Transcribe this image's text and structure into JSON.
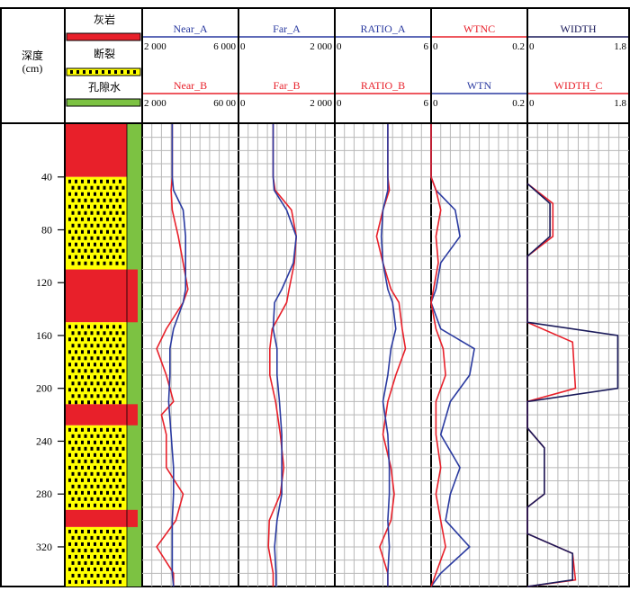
{
  "depth_track": {
    "title": "深度",
    "unit": "(cm)",
    "ticks": [
      "40",
      "80",
      "120",
      "160",
      "200",
      "240",
      "280",
      "320"
    ]
  },
  "legend": {
    "items": [
      {
        "label": "灰岩",
        "color": "#e8202a"
      },
      {
        "label": "断裂",
        "color": "#ffffff"
      },
      {
        "label": "孔隙水",
        "color": "#7cc242"
      }
    ],
    "breccia_color": "#ffff00",
    "dot_color": "#000000"
  },
  "colors": {
    "A": "#e8202a",
    "B": "#2a3aa0",
    "grid": "#b8b8b8",
    "frame": "#000000",
    "header_text": "#2a3aa0",
    "header_text_red": "#e8202a"
  },
  "tracks": [
    {
      "id": "near",
      "top": {
        "name": "Near_A",
        "color": "#2a3aa0",
        "min_label": "2 000",
        "max_label": "6 000"
      },
      "bottom": {
        "name": "Near_B",
        "color": "#e8202a",
        "min_label": "2 000",
        "max_label": "60 00"
      }
    },
    {
      "id": "far",
      "top": {
        "name": "Far_A",
        "color": "#2a3aa0",
        "min_label": "0",
        "max_label": "2 000"
      },
      "bottom": {
        "name": "Far_B",
        "color": "#e8202a",
        "min_label": "0",
        "max_label": "2 000"
      }
    },
    {
      "id": "ratio",
      "top": {
        "name": "RATIO_A",
        "color": "#2a3aa0",
        "min_label": "0",
        "max_label": "6"
      },
      "bottom": {
        "name": "RATIO_B",
        "color": "#e8202a",
        "min_label": "0",
        "max_label": "6"
      }
    },
    {
      "id": "wtn",
      "top": {
        "name": "WTNC",
        "color": "#e8202a",
        "min_label": "0",
        "max_label": "0.2"
      },
      "bottom": {
        "name": "WTN",
        "color": "#2a3aa0",
        "min_label": "0",
        "max_label": "0.2"
      }
    },
    {
      "id": "width",
      "top": {
        "name": "WIDTH",
        "color": "#1a1a5a",
        "min_label": "0",
        "max_label": "1.8"
      },
      "bottom": {
        "name": "WIDTH_C",
        "color": "#e8202a",
        "min_label": "0",
        "max_label": "1.8"
      }
    }
  ],
  "chart_data": {
    "type": "line",
    "depth_range": [
      0,
      350
    ],
    "depth_unit": "cm",
    "lithology": [
      {
        "top": 0,
        "bottom": 40,
        "type": "灰岩"
      },
      {
        "top": 40,
        "bottom": 110,
        "type": "断裂"
      },
      {
        "top": 110,
        "bottom": 150,
        "type": "灰岩"
      },
      {
        "top": 150,
        "bottom": 212,
        "type": "断裂"
      },
      {
        "top": 212,
        "bottom": 228,
        "type": "灰岩"
      },
      {
        "top": 228,
        "bottom": 292,
        "type": "断裂"
      },
      {
        "top": 292,
        "bottom": 305,
        "type": "灰岩"
      },
      {
        "top": 305,
        "bottom": 350,
        "type": "断裂"
      }
    ],
    "pore_water": {
      "top": 0,
      "bottom": 350
    },
    "curves": {
      "near": {
        "scale": [
          2000,
          6000
        ],
        "Near_A": [
          [
            0,
            3250
          ],
          [
            40,
            3250
          ],
          [
            50,
            3300
          ],
          [
            65,
            3700
          ],
          [
            85,
            3800
          ],
          [
            105,
            3800
          ],
          [
            125,
            3800
          ],
          [
            135,
            3700
          ],
          [
            155,
            3300
          ],
          [
            170,
            3150
          ],
          [
            190,
            3150
          ],
          [
            210,
            3100
          ],
          [
            235,
            3200
          ],
          [
            260,
            3300
          ],
          [
            280,
            3300
          ],
          [
            300,
            3250
          ],
          [
            320,
            3250
          ],
          [
            340,
            3250
          ],
          [
            350,
            3300
          ]
        ],
        "Near_B": [
          [
            0,
            3250
          ],
          [
            40,
            3250
          ],
          [
            50,
            3200
          ],
          [
            65,
            3250
          ],
          [
            85,
            3500
          ],
          [
            105,
            3700
          ],
          [
            125,
            3900
          ],
          [
            135,
            3700
          ],
          [
            155,
            3000
          ],
          [
            170,
            2600
          ],
          [
            190,
            3000
          ],
          [
            210,
            3300
          ],
          [
            220,
            2800
          ],
          [
            235,
            3000
          ],
          [
            260,
            3000
          ],
          [
            280,
            3700
          ],
          [
            300,
            3400
          ],
          [
            320,
            2600
          ],
          [
            340,
            3300
          ],
          [
            350,
            3300
          ]
        ]
      },
      "far": {
        "scale": [
          0,
          2000
        ],
        "Far_A": [
          [
            0,
            720
          ],
          [
            40,
            720
          ],
          [
            50,
            740
          ],
          [
            65,
            1000
          ],
          [
            85,
            1200
          ],
          [
            105,
            1140
          ],
          [
            125,
            900
          ],
          [
            135,
            750
          ],
          [
            155,
            720
          ],
          [
            170,
            800
          ],
          [
            190,
            800
          ],
          [
            210,
            850
          ],
          [
            235,
            900
          ],
          [
            260,
            900
          ],
          [
            280,
            900
          ],
          [
            300,
            800
          ],
          [
            320,
            750
          ],
          [
            340,
            780
          ],
          [
            350,
            780
          ]
        ],
        "Far_B": [
          [
            0,
            720
          ],
          [
            40,
            720
          ],
          [
            50,
            760
          ],
          [
            65,
            1100
          ],
          [
            85,
            1200
          ],
          [
            105,
            1160
          ],
          [
            125,
            1050
          ],
          [
            135,
            1000
          ],
          [
            155,
            700
          ],
          [
            170,
            650
          ],
          [
            190,
            650
          ],
          [
            210,
            770
          ],
          [
            235,
            870
          ],
          [
            260,
            940
          ],
          [
            280,
            870
          ],
          [
            300,
            640
          ],
          [
            320,
            620
          ],
          [
            340,
            720
          ],
          [
            350,
            720
          ]
        ]
      },
      "ratio": {
        "scale": [
          0,
          6
        ],
        "RATIO_A": [
          [
            0,
            3.3
          ],
          [
            40,
            3.3
          ],
          [
            50,
            3.3
          ],
          [
            65,
            3.0
          ],
          [
            85,
            2.9
          ],
          [
            105,
            3.0
          ],
          [
            125,
            3.3
          ],
          [
            135,
            3.6
          ],
          [
            155,
            3.8
          ],
          [
            170,
            3.5
          ],
          [
            190,
            3.3
          ],
          [
            210,
            3.0
          ],
          [
            235,
            3.3
          ],
          [
            260,
            3.4
          ],
          [
            280,
            3.4
          ],
          [
            300,
            3.3
          ],
          [
            320,
            3.4
          ],
          [
            340,
            3.3
          ],
          [
            350,
            3.3
          ]
        ],
        "RATIO_B": [
          [
            0,
            3.3
          ],
          [
            40,
            3.3
          ],
          [
            50,
            3.4
          ],
          [
            65,
            3.0
          ],
          [
            85,
            2.6
          ],
          [
            105,
            3.0
          ],
          [
            125,
            3.5
          ],
          [
            135,
            4.0
          ],
          [
            155,
            4.2
          ],
          [
            170,
            4.4
          ],
          [
            190,
            3.8
          ],
          [
            210,
            3.3
          ],
          [
            235,
            3.0
          ],
          [
            260,
            3.5
          ],
          [
            280,
            3.7
          ],
          [
            300,
            3.5
          ],
          [
            320,
            2.8
          ],
          [
            340,
            3.3
          ],
          [
            350,
            3.3
          ]
        ]
      },
      "wtn": {
        "scale": [
          0,
          0.2
        ],
        "WTNC": [
          [
            0,
            0
          ],
          [
            40,
            0
          ],
          [
            50,
            0.01
          ],
          [
            65,
            0.02
          ],
          [
            85,
            0.01
          ],
          [
            105,
            0.015
          ],
          [
            125,
            0.005
          ],
          [
            135,
            0.0
          ],
          [
            155,
            0.01
          ],
          [
            170,
            0.025
          ],
          [
            190,
            0.03
          ],
          [
            210,
            0.01
          ],
          [
            235,
            0.01
          ],
          [
            260,
            0.02
          ],
          [
            280,
            0.01
          ],
          [
            300,
            0.02
          ],
          [
            320,
            0.03
          ],
          [
            340,
            0.01
          ],
          [
            350,
            0.0
          ]
        ],
        "WTN": [
          [
            0,
            0
          ],
          [
            40,
            0
          ],
          [
            50,
            0.01
          ],
          [
            65,
            0.05
          ],
          [
            85,
            0.06
          ],
          [
            105,
            0.02
          ],
          [
            125,
            0.01
          ],
          [
            135,
            0.0
          ],
          [
            155,
            0.02
          ],
          [
            170,
            0.09
          ],
          [
            190,
            0.08
          ],
          [
            210,
            0.04
          ],
          [
            235,
            0.02
          ],
          [
            260,
            0.06
          ],
          [
            280,
            0.04
          ],
          [
            300,
            0.03
          ],
          [
            320,
            0.08
          ],
          [
            340,
            0.02
          ],
          [
            350,
            0.0
          ]
        ]
      },
      "width": {
        "scale": [
          0,
          1.8
        ],
        "WIDTH": [
          [
            45,
            0
          ],
          [
            60,
            0.4
          ],
          [
            85,
            0.4
          ],
          [
            100,
            0
          ],
          [
            150,
            0
          ],
          [
            160,
            1.6
          ],
          [
            200,
            1.6
          ],
          [
            210,
            0
          ],
          [
            230,
            0
          ],
          [
            245,
            0.3
          ],
          [
            280,
            0.3
          ],
          [
            290,
            0
          ],
          [
            310,
            0
          ],
          [
            325,
            0.8
          ],
          [
            345,
            0.8
          ],
          [
            350,
            0
          ]
        ],
        "WIDTH_C": [
          [
            45,
            0
          ],
          [
            60,
            0.45
          ],
          [
            85,
            0.45
          ],
          [
            100,
            0
          ],
          [
            150,
            0
          ],
          [
            165,
            0.8
          ],
          [
            200,
            0.85
          ],
          [
            210,
            0
          ],
          [
            230,
            0
          ],
          [
            245,
            0.3
          ],
          [
            280,
            0.3
          ],
          [
            290,
            0
          ],
          [
            310,
            0
          ],
          [
            325,
            0.8
          ],
          [
            345,
            0.85
          ],
          [
            350,
            0
          ]
        ]
      }
    }
  }
}
